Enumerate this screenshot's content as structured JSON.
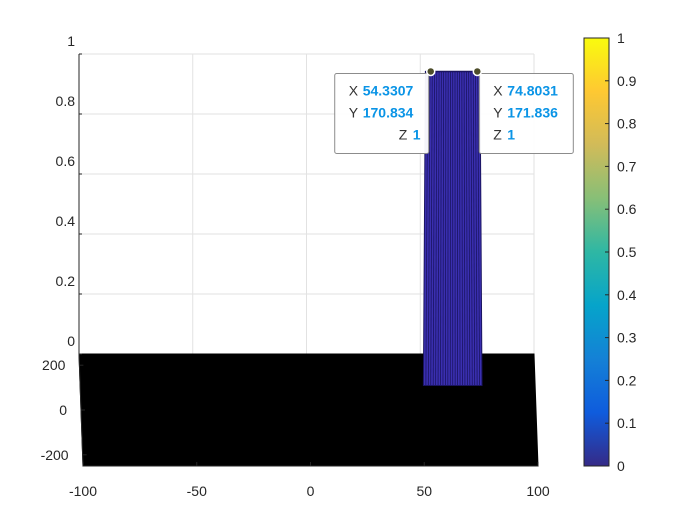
{
  "chart_data": {
    "type": "surface",
    "title": "",
    "xlabel": "",
    "ylabel": "",
    "zlabel": "",
    "xlim": [
      -100,
      100
    ],
    "ylim": [
      -250,
      250
    ],
    "zlim": [
      0,
      1
    ],
    "x_ticks": [
      "-100",
      "-50",
      "0",
      "50",
      "100"
    ],
    "y_ticks": [
      "-200",
      "0",
      "200"
    ],
    "z_ticks": [
      "0",
      "0.2",
      "0.4",
      "0.6",
      "0.8",
      "1"
    ],
    "grid": true,
    "view": "near side view (small elevation)",
    "surface": {
      "base_z": 0,
      "raised_z": 1,
      "raised_x_range": [
        52,
        76
      ],
      "raised_y_range": [
        -250,
        172
      ]
    },
    "colormap": "parula",
    "colorbar": {
      "range": [
        0,
        1
      ],
      "ticks": [
        "0",
        "0.1",
        "0.2",
        "0.3",
        "0.4",
        "0.5",
        "0.6",
        "0.7",
        "0.8",
        "0.9",
        "1"
      ]
    },
    "datatips": [
      {
        "x_label": "X",
        "x": "54.3307",
        "y_label": "Y",
        "y": "170.834",
        "z_label": "Z",
        "z": "1",
        "anchor_x": 54.3307,
        "anchor_z": 1
      },
      {
        "x_label": "X",
        "x": "74.8031",
        "y_label": "Y",
        "y": "171.836",
        "z_label": "Z",
        "z": "1",
        "anchor_x": 74.8031,
        "anchor_z": 1
      }
    ]
  },
  "colors": {
    "base_face": "#000000",
    "raised_face": "#3a2fb0",
    "raised_edge": "#1a1460",
    "grid": "#e2e2e2",
    "axis": "#262626",
    "datatip_value": "#0a94e6",
    "colorbar_stops": [
      "#352a87",
      "#0f5cdd",
      "#1481d6",
      "#06a4ca",
      "#2eb7a4",
      "#87bf77",
      "#d1bb59",
      "#fec832",
      "#f9fb0e"
    ]
  }
}
